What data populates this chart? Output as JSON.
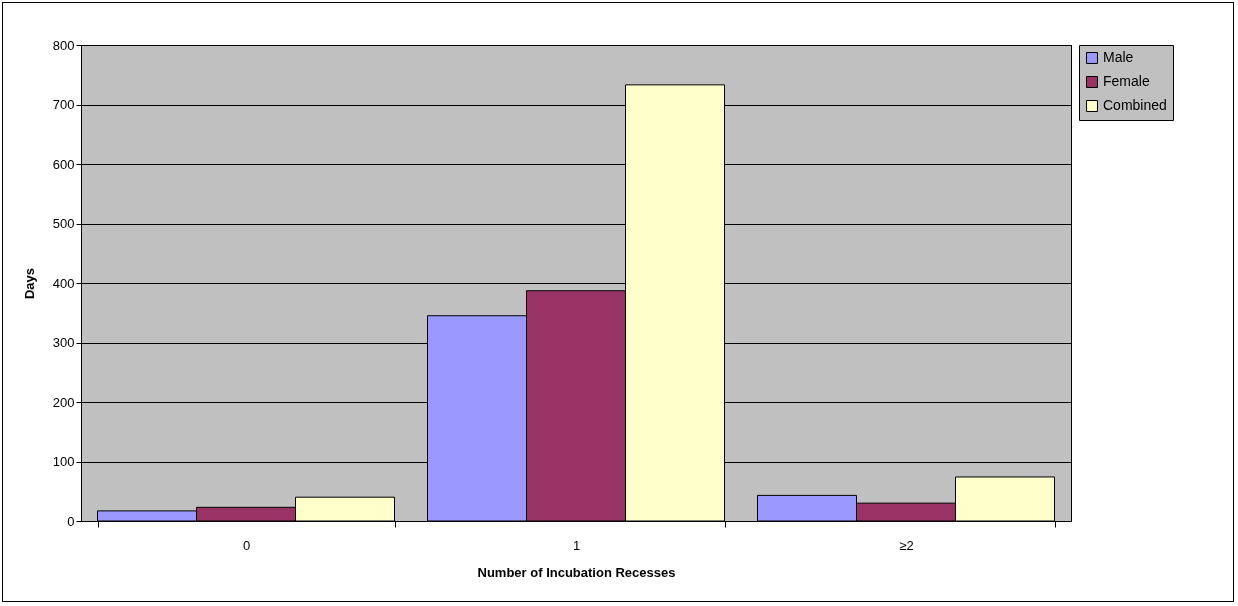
{
  "chart_data": {
    "type": "bar",
    "xlabel": "Number of Incubation Recesses",
    "ylabel": "Days",
    "categories": [
      "0",
      "1",
      "≥2"
    ],
    "series": [
      {
        "name": "Male",
        "color": "#9999ff",
        "values": [
          17,
          345,
          43
        ]
      },
      {
        "name": "Female",
        "color": "#993366",
        "values": [
          23,
          387,
          30
        ]
      },
      {
        "name": "Combined",
        "color": "#ffffcc",
        "values": [
          40,
          733,
          74
        ]
      }
    ],
    "ylim": [
      0,
      800
    ],
    "yticks": [
      0,
      100,
      200,
      300,
      400,
      500,
      600,
      700,
      800
    ],
    "grid": "y",
    "legend": "right"
  }
}
